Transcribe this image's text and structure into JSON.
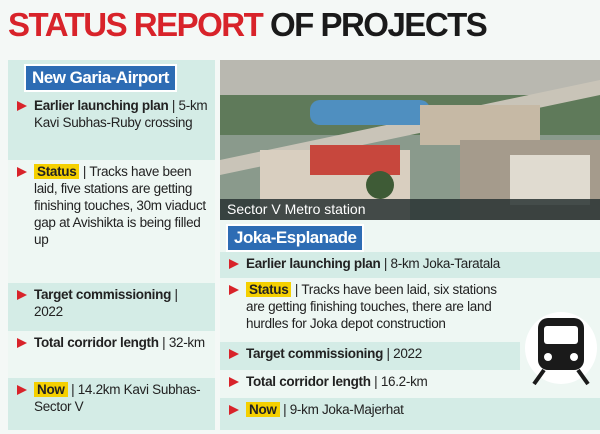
{
  "title": {
    "highlight": "STATUS REPORT",
    "rest": "OF PROJECTS"
  },
  "photo_caption": "Sector V Metro station",
  "projects": [
    {
      "name": "New Garia-Airport",
      "items": [
        {
          "label": "Earlier launching plan",
          "text": "| 5-km Kavi Subhas-Ruby crossing"
        },
        {
          "label": "Status",
          "text": "| Tracks have been laid, five stations are getting finishing touches, 30m viaduct gap at Avishikta is being filled up"
        },
        {
          "label": "Target commissioning",
          "text": "| 2022"
        },
        {
          "label": "Total corridor length",
          "text": "| 32-km"
        },
        {
          "label": "Now",
          "text": "| 14.2km Kavi Subhas-Sector V"
        }
      ]
    },
    {
      "name": "Joka-Esplanade",
      "items": [
        {
          "label": "Earlier launching plan",
          "text": "| 8-km Joka-Taratala"
        },
        {
          "label": "Status",
          "text": "| Tracks have been laid, six stations are getting finishing touches, there are land hurdles for Joka depot construction"
        },
        {
          "label": "Target commissioning",
          "text": "| 2022"
        },
        {
          "label": "Total corridor length",
          "text": "| 16.2-km"
        },
        {
          "label": "Now",
          "text": "| 9-km Joka-Majerhat"
        }
      ]
    }
  ]
}
